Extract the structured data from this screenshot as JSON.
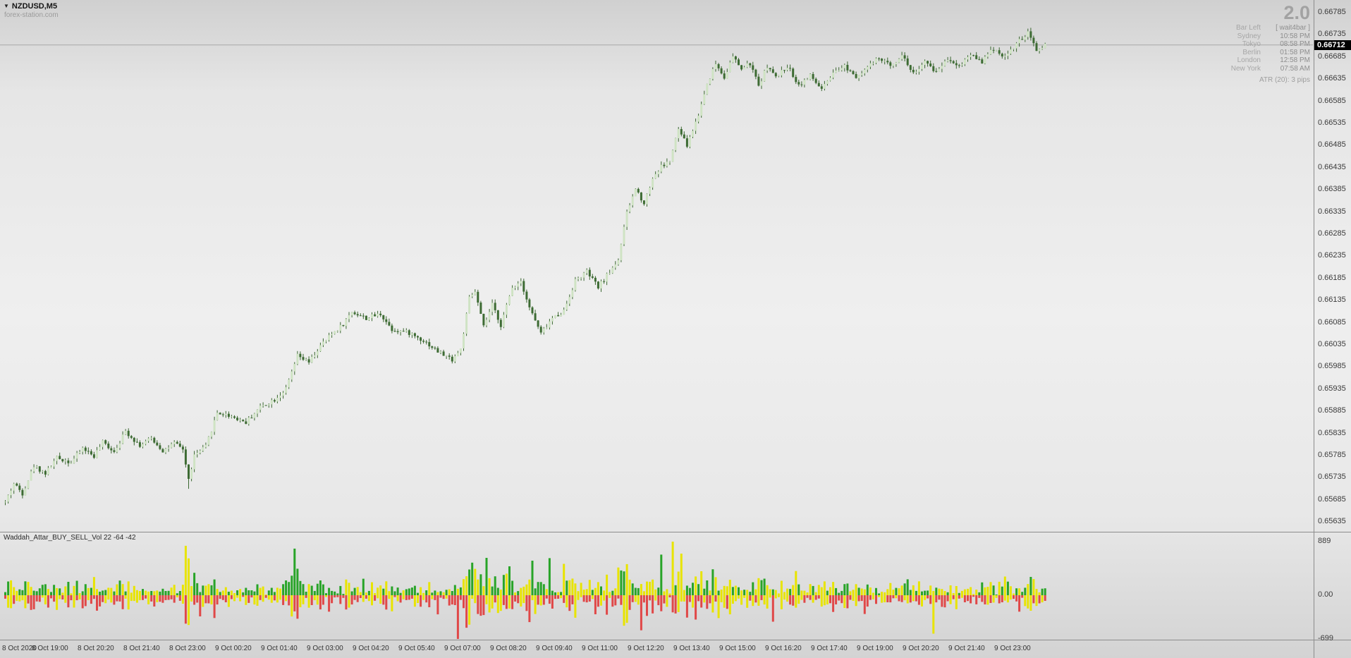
{
  "header": {
    "symbol": "NZDUSD,M5",
    "dropdown_glyph": "▼",
    "watermark": "forex-station.com"
  },
  "overlay": {
    "big_value": "2.0",
    "bar_left_label": "Bar Left",
    "bar_left_value": "[ wait4bar ]",
    "clocks": [
      {
        "label": "Sydney",
        "time": "10:58 PM"
      },
      {
        "label": "Tokyo",
        "time": "08:58 PM"
      },
      {
        "label": "Berlin",
        "time": "01:58 PM"
      },
      {
        "label": "London",
        "time": "12:58 PM"
      },
      {
        "label": "New York",
        "time": "07:58 AM"
      }
    ],
    "atr_label": "ATR (20): 3 pips"
  },
  "price_axis": {
    "current_price": "0.66712",
    "ticks": [
      "0.66785",
      "0.66735",
      "0.66685",
      "0.66635",
      "0.66585",
      "0.66535",
      "0.66485",
      "0.66435",
      "0.66385",
      "0.66335",
      "0.66285",
      "0.66235",
      "0.66185",
      "0.66135",
      "0.66085",
      "0.66035",
      "0.65985",
      "0.65935",
      "0.65885",
      "0.65835",
      "0.65785",
      "0.65735",
      "0.65685",
      "0.65635"
    ]
  },
  "indicator": {
    "name": "Waddah_Attar_BUY_SELL_Vol 22 -64 -42",
    "axis": {
      "top": "889",
      "mid": "0.00",
      "bottom": "-699"
    }
  },
  "time_axis": {
    "labels": [
      "8 Oct 2020",
      "8 Oct 19:00",
      "8 Oct 20:20",
      "8 Oct 21:40",
      "8 Oct 23:00",
      "9 Oct 00:20",
      "9 Oct 01:40",
      "9 Oct 03:00",
      "9 Oct 04:20",
      "9 Oct 05:40",
      "9 Oct 07:00",
      "9 Oct 08:20",
      "9 Oct 09:40",
      "9 Oct 11:00",
      "9 Oct 12:20",
      "9 Oct 13:40",
      "9 Oct 15:00",
      "9 Oct 16:20",
      "9 Oct 17:40",
      "9 Oct 19:00",
      "9 Oct 20:20",
      "9 Oct 21:40",
      "9 Oct 23:00"
    ]
  },
  "colors": {
    "candle_up": "#cfe3c4",
    "candle_down": "#3d6b33",
    "candle_wick": "#3a6630",
    "hist_green": "#28a428",
    "hist_yellow": "#e8e400",
    "hist_red": "#e04848",
    "separator": "#8c8c8c",
    "price_line": "#a8a8a8",
    "price_tag_bg": "#000000",
    "price_tag_text": "#ffffff"
  },
  "chart_data": {
    "type": "candlestick",
    "symbol": "NZDUSD",
    "timeframe": "M5",
    "title": "NZDUSD,M5",
    "current_price": 0.66712,
    "price_range": {
      "min": 0.65635,
      "max": 0.66785,
      "tick_step": 0.0005
    },
    "bars_total": 364,
    "bars_per_time_label": 16,
    "grid": false,
    "price_path_anchors": [
      [
        0,
        0.6568
      ],
      [
        3,
        0.65722
      ],
      [
        6,
        0.657
      ],
      [
        10,
        0.65762
      ],
      [
        14,
        0.65745
      ],
      [
        18,
        0.6578
      ],
      [
        23,
        0.6577
      ],
      [
        27,
        0.65802
      ],
      [
        31,
        0.65784
      ],
      [
        34,
        0.65815
      ],
      [
        38,
        0.65795
      ],
      [
        42,
        0.6584
      ],
      [
        47,
        0.65808
      ],
      [
        51,
        0.65824
      ],
      [
        55,
        0.65796
      ],
      [
        59,
        0.65812
      ],
      [
        62,
        0.658
      ],
      [
        64,
        0.6573
      ],
      [
        66,
        0.65785
      ],
      [
        70,
        0.65805
      ],
      [
        74,
        0.65882
      ],
      [
        79,
        0.65874
      ],
      [
        84,
        0.6586
      ],
      [
        89,
        0.65895
      ],
      [
        94,
        0.65912
      ],
      [
        98,
        0.65935
      ],
      [
        102,
        0.6601
      ],
      [
        106,
        0.65995
      ],
      [
        110,
        0.66032
      ],
      [
        114,
        0.6606
      ],
      [
        118,
        0.66082
      ],
      [
        121,
        0.6611
      ],
      [
        126,
        0.66095
      ],
      [
        131,
        0.66105
      ],
      [
        135,
        0.6607
      ],
      [
        141,
        0.66062
      ],
      [
        146,
        0.66045
      ],
      [
        151,
        0.6602
      ],
      [
        156,
        0.66002
      ],
      [
        159,
        0.66025
      ],
      [
        162,
        0.6614
      ],
      [
        164,
        0.66155
      ],
      [
        167,
        0.66075
      ],
      [
        170,
        0.66125
      ],
      [
        173,
        0.6608
      ],
      [
        177,
        0.66165
      ],
      [
        180,
        0.6618
      ],
      [
        183,
        0.6612
      ],
      [
        187,
        0.6606
      ],
      [
        191,
        0.66095
      ],
      [
        195,
        0.66112
      ],
      [
        199,
        0.6618
      ],
      [
        203,
        0.662
      ],
      [
        207,
        0.66165
      ],
      [
        211,
        0.662
      ],
      [
        214,
        0.66228
      ],
      [
        217,
        0.66332
      ],
      [
        220,
        0.66388
      ],
      [
        223,
        0.66355
      ],
      [
        226,
        0.66412
      ],
      [
        229,
        0.66438
      ],
      [
        232,
        0.6645
      ],
      [
        235,
        0.66522
      ],
      [
        238,
        0.66485
      ],
      [
        242,
        0.66555
      ],
      [
        245,
        0.66625
      ],
      [
        248,
        0.6667
      ],
      [
        251,
        0.6664
      ],
      [
        254,
        0.66685
      ],
      [
        257,
        0.66658
      ],
      [
        260,
        0.6667
      ],
      [
        263,
        0.6662
      ],
      [
        266,
        0.66665
      ],
      [
        269,
        0.66638
      ],
      [
        273,
        0.66665
      ],
      [
        277,
        0.66622
      ],
      [
        281,
        0.66642
      ],
      [
        285,
        0.66612
      ],
      [
        289,
        0.66645
      ],
      [
        293,
        0.66665
      ],
      [
        297,
        0.66642
      ],
      [
        301,
        0.66662
      ],
      [
        305,
        0.66682
      ],
      [
        309,
        0.66665
      ],
      [
        313,
        0.6669
      ],
      [
        317,
        0.66648
      ],
      [
        321,
        0.66672
      ],
      [
        325,
        0.66652
      ],
      [
        329,
        0.66682
      ],
      [
        333,
        0.66665
      ],
      [
        337,
        0.66692
      ],
      [
        341,
        0.66675
      ],
      [
        345,
        0.66705
      ],
      [
        349,
        0.66685
      ],
      [
        353,
        0.66715
      ],
      [
        357,
        0.66738
      ],
      [
        360,
        0.667
      ],
      [
        363,
        0.66712
      ]
    ],
    "spike_low": {
      "bar": 64,
      "price": 0.6571
    },
    "indicator_panel": {
      "type": "histogram",
      "name": "Waddah_Attar_BUY_SELL_Vol 22 -64 -42",
      "range": {
        "min": -699,
        "max": 889
      },
      "zero_label": "0.00",
      "spikes": [
        {
          "bar": 102,
          "buy": 440,
          "buy_color": "green"
        },
        {
          "bar": 158,
          "sell": 699,
          "sell_color": "red"
        },
        {
          "bar": 161,
          "sell": 520,
          "sell_color": "red"
        },
        {
          "bar": 163,
          "buy": 540,
          "buy_color": "green"
        },
        {
          "bar": 168,
          "buy": 620,
          "buy_color": "green"
        },
        {
          "bar": 176,
          "buy": 480,
          "buy_color": "green"
        },
        {
          "bar": 183,
          "sell": 430,
          "sell_color": "red"
        },
        {
          "bar": 195,
          "buy": 520,
          "buy_color": "yellow"
        },
        {
          "bar": 214,
          "buy": 460,
          "buy_color": "yellow"
        },
        {
          "bar": 222,
          "sell": 560,
          "sell_color": "red"
        },
        {
          "bar": 233,
          "buy": 889,
          "buy_color": "yellow"
        },
        {
          "bar": 236,
          "buy": 690,
          "buy_color": "yellow"
        },
        {
          "bar": 247,
          "buy": 430,
          "buy_color": "green"
        },
        {
          "bar": 300,
          "sell": 300,
          "sell_color": "red"
        }
      ]
    }
  }
}
